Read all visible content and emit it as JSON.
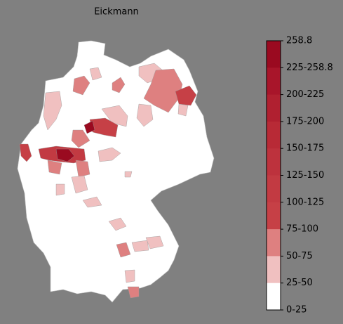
{
  "title": "Eickmann",
  "colorbar": {
    "labels": [
      "258.8",
      "225-258.8",
      "200-225",
      "175-200",
      "150-175",
      "125-150",
      "100-125",
      "75-100",
      "50-75",
      "25-50",
      "0-25"
    ],
    "colors": [
      "#9a0a20",
      "#a8152a",
      "#b02030",
      "#b82a36",
      "#bd323d",
      "#c23a42",
      "#c64046",
      "#de8080",
      "#f0c0c0",
      "#ffffff"
    ]
  }
}
